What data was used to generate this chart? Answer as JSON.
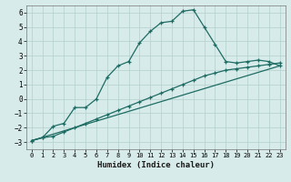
{
  "title": "",
  "xlabel": "Humidex (Indice chaleur)",
  "background_color": "#d7ecea",
  "grid_color": "#b8d4d0",
  "line_color": "#1e6b63",
  "xlim": [
    -0.5,
    23.5
  ],
  "ylim": [
    -3.5,
    6.5
  ],
  "xticks": [
    0,
    1,
    2,
    3,
    4,
    5,
    6,
    7,
    8,
    9,
    10,
    11,
    12,
    13,
    14,
    15,
    16,
    17,
    18,
    19,
    20,
    21,
    22,
    23
  ],
  "yticks": [
    -3,
    -2,
    -1,
    0,
    1,
    2,
    3,
    4,
    5,
    6
  ],
  "curve1_x": [
    0,
    1,
    2,
    3,
    4,
    5,
    6,
    7,
    8,
    9,
    10,
    11,
    12,
    13,
    14,
    15,
    16,
    17,
    18,
    19,
    20,
    21,
    22,
    23
  ],
  "curve1_y": [
    -2.9,
    -2.7,
    -1.9,
    -1.7,
    -0.6,
    -0.6,
    0.0,
    1.5,
    2.3,
    2.6,
    3.9,
    4.7,
    5.3,
    5.4,
    6.1,
    6.2,
    5.0,
    3.8,
    2.6,
    2.5,
    2.6,
    2.7,
    2.6,
    2.3
  ],
  "curve2_x": [
    0,
    1,
    2,
    3,
    4,
    5,
    6,
    7,
    8,
    9,
    10,
    11,
    12,
    13,
    14,
    15,
    16,
    17,
    18,
    19,
    20,
    21,
    22,
    23
  ],
  "curve2_y": [
    -2.9,
    -2.7,
    -2.6,
    -2.3,
    -2.0,
    -1.7,
    -1.4,
    -1.1,
    -0.8,
    -0.5,
    -0.2,
    0.1,
    0.4,
    0.7,
    1.0,
    1.3,
    1.6,
    1.8,
    2.0,
    2.1,
    2.2,
    2.3,
    2.4,
    2.5
  ],
  "curve3_x": [
    0,
    23
  ],
  "curve3_y": [
    -2.9,
    2.3
  ]
}
